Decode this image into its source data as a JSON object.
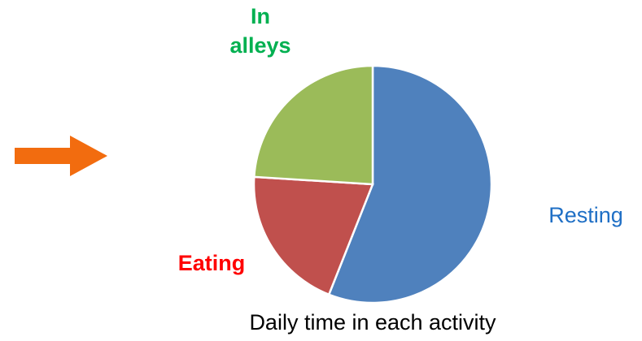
{
  "chart_data": {
    "type": "pie",
    "title": "Daily time in each activity",
    "categories": [
      "Resting",
      "Eating",
      "In alleys"
    ],
    "values": [
      56,
      20,
      24
    ],
    "colors": [
      "#4f81bd",
      "#c0504d",
      "#9bbb59"
    ]
  }
}
